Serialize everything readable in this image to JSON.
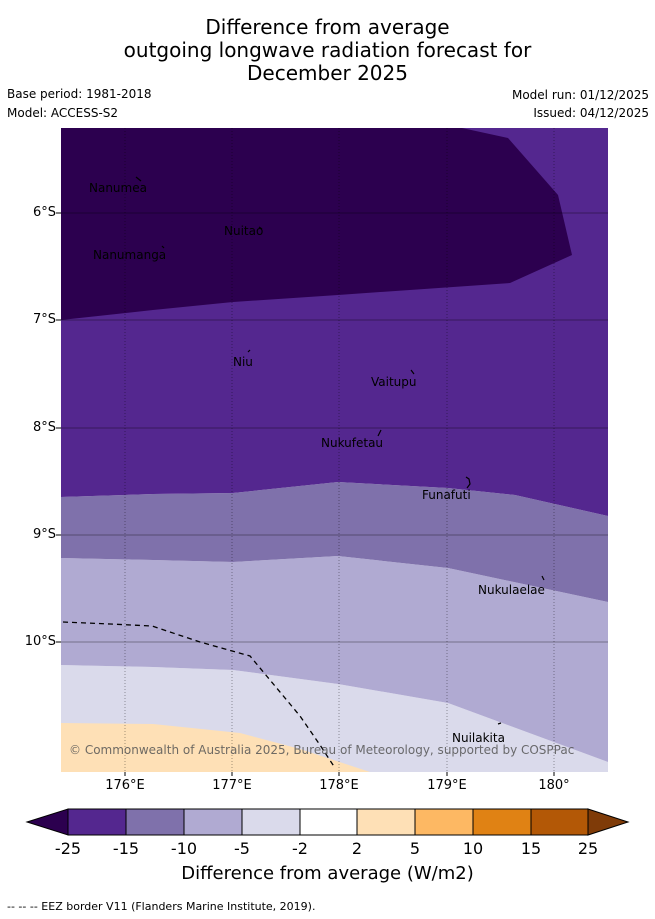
{
  "title_lines": [
    "Difference from average",
    "outgoing longwave radiation forecast for",
    "December 2025"
  ],
  "meta": {
    "base_period": "Base period: 1981-2018",
    "model": "Model: ACCESS-S2",
    "model_run": "Model run: 01/12/2025",
    "issued": "Issued: 04/12/2025"
  },
  "axes": {
    "y_ticks": [
      "6°S",
      "7°S",
      "8°S",
      "9°S",
      "10°S"
    ],
    "x_ticks": [
      "176°E",
      "177°E",
      "178°E",
      "179°E",
      "180°"
    ]
  },
  "places": [
    "Nanumea",
    "Nuitao",
    "Nanumanga",
    "Niu",
    "Vaitupu",
    "Nukufetau",
    "Funafuti",
    "Nukulaelae",
    "Nuilakita"
  ],
  "copyright": "© Commonwealth of Australia 2025, Bureau of Meteorology, supported by COSPPac",
  "colorbar": {
    "title": "Difference from average (W/m2)",
    "ticks": [
      "-25",
      "-15",
      "-10",
      "-5",
      "-2",
      "2",
      "5",
      "10",
      "15",
      "25"
    ],
    "colors": [
      "#2c004f",
      "#54278f",
      "#7f71ab",
      "#b0aad2",
      "#dadaeb",
      "#ffffff",
      "#fee0b6",
      "#fdb863",
      "#e08214",
      "#b35806",
      "#7f3b08"
    ]
  },
  "footer": "--  --  -- EEZ border V11 (Flanders Marine Institute, 2019)."
}
